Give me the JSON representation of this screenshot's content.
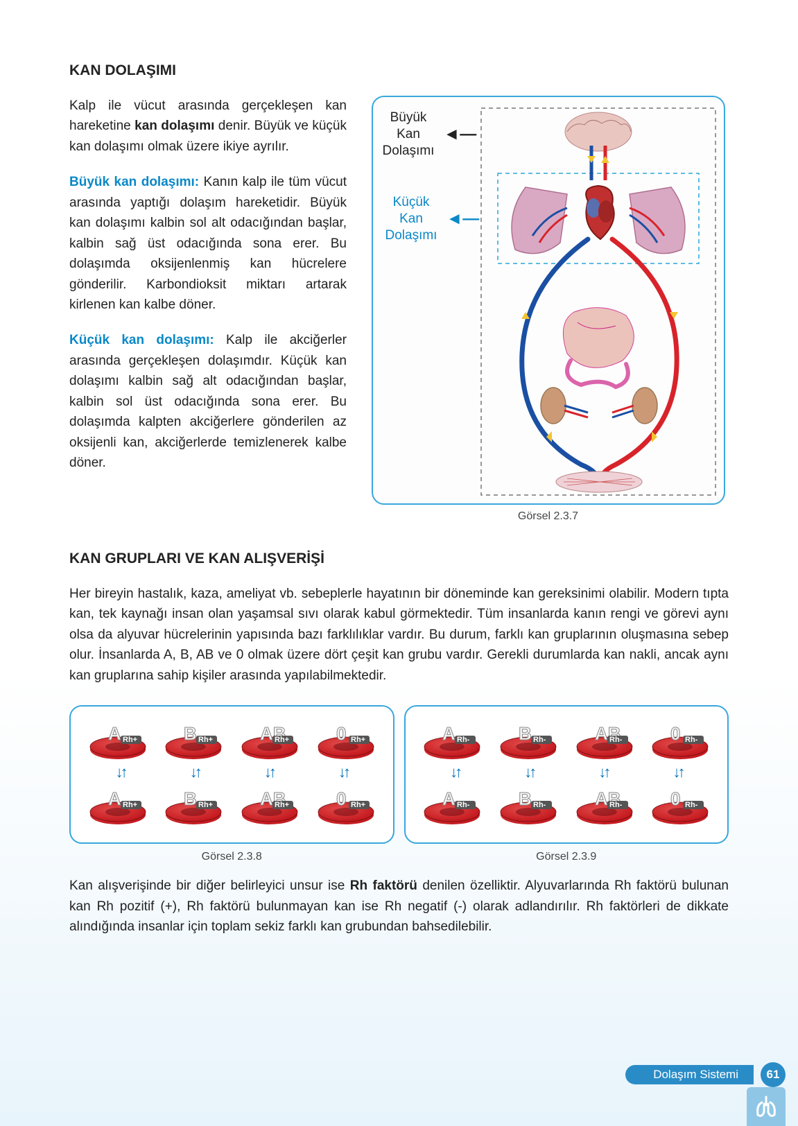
{
  "sections": {
    "s1_title": "KAN DOLAŞIMI",
    "s2_title": "KAN GRUPLARI VE KAN ALIŞVERİŞİ"
  },
  "paragraphs": {
    "p1_a": "Kalp ile vücut arasında gerçekleşen kan hareketine ",
    "p1_bold": "kan dolaşımı",
    "p1_b": " denir. Büyük ve küçük kan dolaşımı olmak üzere ikiye ayrılır.",
    "p2_term": "Büyük kan dolaşımı:",
    "p2_body": " Kanın kalp ile tüm vücut arasında yaptığı dolaşım hareketidir. Büyük kan dolaşımı kalbin sol alt odacığından başlar, kalbin sağ üst odacığında sona erer. Bu dolaşımda oksijenlenmiş kan hücrelere gönderilir. Karbondioksit miktarı artarak kirlenen kan kalbe döner.",
    "p3_term": "Küçük kan dolaşımı:",
    "p3_body": " Kalp ile akciğerler arasında gerçekleşen dolaşımdır. Küçük kan dolaşımı kalbin sağ alt odacığından başlar, kalbin sol üst odacığında sona erer. Bu dolaşımda kalpten akciğerlere gönderilen az oksijenli kan, akciğerlerde temizlenerek kalbe döner.",
    "p4": "Her bireyin hastalık, kaza, ameliyat vb. sebeplerle hayatının bir döneminde kan gereksinimi olabilir. Modern tıpta kan, tek kaynağı insan olan yaşamsal sıvı olarak kabul görmektedir. Tüm insanlarda kanın rengi ve görevi aynı olsa da alyuvar hücrelerinin yapısında bazı farklılıklar vardır. Bu durum, farklı kan gruplarının oluşmasına sebep olur. İnsanlarda A, B, AB ve 0 olmak üzere dört çeşit kan grubu vardır. Gerekli durumlarda kan nakli, ancak aynı kan gruplarına sahip kişiler arasında yapılabilmektedir.",
    "p5_a": "Kan alışverişinde bir diğer belirleyici unsur ise ",
    "p5_bold": "Rh faktörü",
    "p5_b": " denilen özelliktir. Alyuvarlarında Rh faktörü bulunan kan Rh pozitif (+), Rh faktörü bulunmayan kan ise Rh negatif (-) olarak adlandırılır. Rh faktörleri de dikkate alındığında insanlar için toplam sekiz farklı kan grubundan bahsedilebilir."
  },
  "figure1": {
    "label_big_l1": "Büyük",
    "label_big_l2": "Kan",
    "label_big_l3": "Dolaşımı",
    "label_small_l1": "Küçük",
    "label_small_l2": "Kan",
    "label_small_l3": "Dolaşımı",
    "caption": "Görsel 2.3.7",
    "colors": {
      "artery": "#d8232a",
      "vein": "#1a4fa3",
      "organ": "#e9b9b0",
      "lung": "#d9a9c4",
      "dashed": "#777777",
      "dashed_cyan": "#2aa7d8"
    }
  },
  "blood": {
    "groups": [
      "A",
      "B",
      "AB",
      "0"
    ],
    "rh_pos": "Rh+",
    "rh_neg": "Rh-",
    "cell_color": "#c1151b",
    "cell_highlight": "#e34a4a",
    "caption_left": "Görsel 2.3.8",
    "caption_right": "Görsel 2.3.9",
    "arrow_color": "#0071bc"
  },
  "footer": {
    "chapter": "Dolaşım Sistemi",
    "page": "61"
  }
}
